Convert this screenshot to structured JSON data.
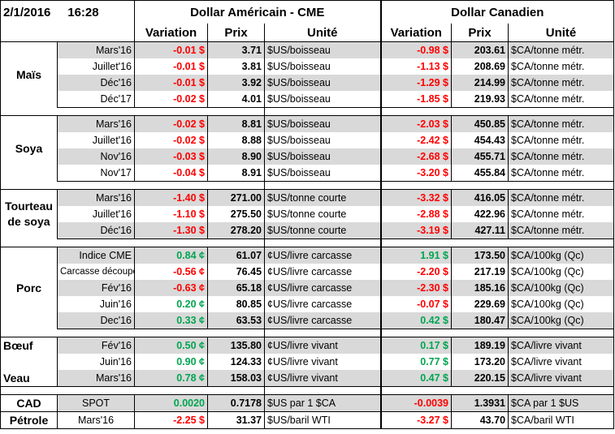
{
  "header": {
    "date": "2/1/2016",
    "time": "16:28",
    "usd_title": "Dollar Américain - CME",
    "cad_title": "Dollar Canadien",
    "col_variation": "Variation",
    "col_prix": "Prix",
    "col_unite": "Unité"
  },
  "colors": {
    "shade": "#d9d9d9",
    "negative": "#ff0000",
    "positive": "#00a550"
  },
  "groups": [
    {
      "name": "Maïs",
      "rows": [
        {
          "contract": "Mars'16",
          "us_var": "-0.01 $",
          "us_price": "3.71",
          "us_unit": "$US/boisseau",
          "ca_var": "-0.98 $",
          "ca_price": "203.61",
          "ca_unit": "$CA/tonne métr."
        },
        {
          "contract": "Juillet'16",
          "us_var": "-0.01 $",
          "us_price": "3.81",
          "us_unit": "$US/boisseau",
          "ca_var": "-1.13 $",
          "ca_price": "208.69",
          "ca_unit": "$CA/tonne métr."
        },
        {
          "contract": "Déc'16",
          "us_var": "-0.01 $",
          "us_price": "3.92",
          "us_unit": "$US/boisseau",
          "ca_var": "-1.29 $",
          "ca_price": "214.99",
          "ca_unit": "$CA/tonne métr."
        },
        {
          "contract": "Déc'17",
          "us_var": "-0.02 $",
          "us_price": "4.01",
          "us_unit": "$US/boisseau",
          "ca_var": "-1.85 $",
          "ca_price": "219.93",
          "ca_unit": "$CA/tonne métr."
        }
      ]
    },
    {
      "name": "Soya",
      "rows": [
        {
          "contract": "Mars'16",
          "us_var": "-0.02 $",
          "us_price": "8.81",
          "us_unit": "$US/boisseau",
          "ca_var": "-2.03 $",
          "ca_price": "450.85",
          "ca_unit": "$CA/tonne métr."
        },
        {
          "contract": "Juillet'16",
          "us_var": "-0.02 $",
          "us_price": "8.88",
          "us_unit": "$US/boisseau",
          "ca_var": "-2.42 $",
          "ca_price": "454.43",
          "ca_unit": "$CA/tonne métr."
        },
        {
          "contract": "Nov'16",
          "us_var": "-0.03 $",
          "us_price": "8.90",
          "us_unit": "$US/boisseau",
          "ca_var": "-2.68 $",
          "ca_price": "455.71",
          "ca_unit": "$CA/tonne métr."
        },
        {
          "contract": "Nov'17",
          "us_var": "-0.04 $",
          "us_price": "8.91",
          "us_unit": "$US/boisseau",
          "ca_var": "-3.20 $",
          "ca_price": "455.84",
          "ca_unit": "$CA/tonne métr."
        }
      ]
    },
    {
      "name_line1": "Tourteau",
      "name_line2": "de soya",
      "rows": [
        {
          "contract": "Mars'16",
          "us_var": "-1.40 $",
          "us_price": "271.00",
          "us_unit": "$US/tonne courte",
          "ca_var": "-3.32 $",
          "ca_price": "416.05",
          "ca_unit": "$CA/tonne métr."
        },
        {
          "contract": "Juillet'16",
          "us_var": "-1.10 $",
          "us_price": "275.50",
          "us_unit": "$US/tonne courte",
          "ca_var": "-2.88 $",
          "ca_price": "422.96",
          "ca_unit": "$CA/tonne métr."
        },
        {
          "contract": "Déc'16",
          "us_var": "-1.30 $",
          "us_price": "278.20",
          "us_unit": "$US/tonne courte",
          "ca_var": "-3.19 $",
          "ca_price": "427.11",
          "ca_unit": "$CA/tonne métr."
        }
      ]
    },
    {
      "name": "Porc",
      "rows": [
        {
          "contract": "Indice CME",
          "us_var": "0.84 ¢",
          "us_var_sign": "pos",
          "us_price": "61.07",
          "us_unit": "¢US/livre carcasse",
          "ca_var": "1.91 $",
          "ca_var_sign": "pos",
          "ca_price": "173.50",
          "ca_unit": "$CA/100kg (Qc)"
        },
        {
          "contract": "Carcasse découpée",
          "us_var": "-0.56 ¢",
          "us_price": "76.45",
          "us_unit": "¢US/livre carcasse",
          "ca_var": "-2.20 $",
          "ca_price": "217.19",
          "ca_unit": "$CA/100kg (Qc)"
        },
        {
          "contract": "Fév'16",
          "us_var": "-0.63 ¢",
          "us_price": "65.18",
          "us_unit": "¢US/livre carcasse",
          "ca_var": "-2.30 $",
          "ca_price": "185.16",
          "ca_unit": "$CA/100kg (Qc)"
        },
        {
          "contract": "Juin'16",
          "us_var": "0.20 ¢",
          "us_var_sign": "pos",
          "us_price": "80.85",
          "us_unit": "¢US/livre carcasse",
          "ca_var": "-0.07 $",
          "ca_price": "229.69",
          "ca_unit": "$CA/100kg (Qc)"
        },
        {
          "contract": "Dec'16",
          "us_var": "0.33 ¢",
          "us_var_sign": "pos",
          "us_price": "63.53",
          "us_unit": "¢US/livre carcasse",
          "ca_var": "0.42 $",
          "ca_var_sign": "pos",
          "ca_price": "180.47",
          "ca_unit": "$CA/100kg (Qc)"
        }
      ]
    },
    {
      "name_boeuf": "Bœuf",
      "name_veau": "Veau",
      "rows": [
        {
          "contract": "Fév'16",
          "us_var": "0.50 ¢",
          "us_var_sign": "pos",
          "us_price": "135.80",
          "us_unit": "¢US/livre vivant",
          "ca_var": "0.17 $",
          "ca_var_sign": "pos",
          "ca_price": "189.19",
          "ca_unit": "$CA/livre vivant"
        },
        {
          "contract": "Juin'16",
          "us_var": "0.90 ¢",
          "us_var_sign": "pos",
          "us_price": "124.33",
          "us_unit": "¢US/livre vivant",
          "ca_var": "0.77 $",
          "ca_var_sign": "pos",
          "ca_price": "173.20",
          "ca_unit": "$CA/livre vivant"
        },
        {
          "contract": "Mars'16",
          "us_var": "0.78 ¢",
          "us_var_sign": "pos",
          "us_price": "158.03",
          "us_unit": "¢US/livre vivant",
          "ca_var": "0.47 $",
          "ca_var_sign": "pos",
          "ca_price": "220.15",
          "ca_unit": "$CA/livre vivant"
        }
      ]
    },
    {
      "name_cad": "CAD",
      "name_petrole": "Pétrole",
      "rows": [
        {
          "contract": "SPOT",
          "us_var": "0.0020",
          "us_var_sign": "pos",
          "us_price": "0.7178",
          "us_unit": "$US par 1 $CA",
          "ca_var": "-0.0039",
          "ca_price": "1.3931",
          "ca_unit": "$CA par 1 $US"
        },
        {
          "contract": "Mars'16",
          "us_var": "-2.25 $",
          "us_price": "31.37",
          "us_unit": "$US/baril WTI",
          "ca_var": "-3.27 $",
          "ca_price": "43.70",
          "ca_unit": "$CA/baril WTI"
        }
      ]
    }
  ]
}
